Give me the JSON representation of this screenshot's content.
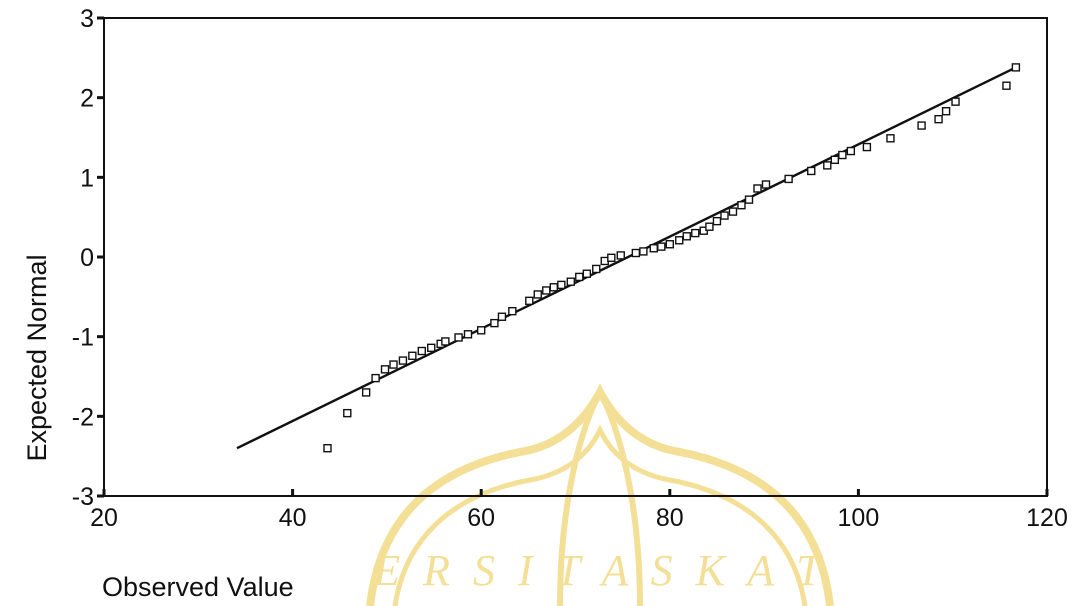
{
  "chart_data": {
    "type": "scatter",
    "title": "",
    "xlabel": "Observed Value",
    "ylabel": "Expected Normal",
    "xlim": [
      20,
      120
    ],
    "ylim": [
      -3,
      3
    ],
    "x_ticks": [
      "20",
      "40",
      "60",
      "80",
      "100",
      "120"
    ],
    "y_ticks": [
      "3",
      "2",
      "1",
      "0",
      "-1",
      "-2",
      "-3"
    ],
    "grid": false,
    "legend": "none",
    "reference_line": {
      "x": [
        34.1,
        116.7
      ],
      "y": [
        -2.4,
        2.38
      ]
    },
    "series": [
      {
        "marker": "open-square",
        "points": [
          [
            43.7,
            -2.4
          ],
          [
            45.8,
            -1.96
          ],
          [
            47.8,
            -1.7
          ],
          [
            48.8,
            -1.52
          ],
          [
            49.8,
            -1.41
          ],
          [
            50.7,
            -1.35
          ],
          [
            51.7,
            -1.3
          ],
          [
            52.7,
            -1.24
          ],
          [
            53.7,
            -1.18
          ],
          [
            54.7,
            -1.14
          ],
          [
            55.7,
            -1.09
          ],
          [
            56.2,
            -1.06
          ],
          [
            57.6,
            -1.01
          ],
          [
            58.6,
            -0.97
          ],
          [
            60.0,
            -0.92
          ],
          [
            61.4,
            -0.83
          ],
          [
            62.2,
            -0.75
          ],
          [
            63.3,
            -0.68
          ],
          [
            65.1,
            -0.55
          ],
          [
            66.0,
            -0.47
          ],
          [
            66.9,
            -0.42
          ],
          [
            67.7,
            -0.38
          ],
          [
            68.5,
            -0.35
          ],
          [
            69.5,
            -0.31
          ],
          [
            70.4,
            -0.25
          ],
          [
            71.2,
            -0.21
          ],
          [
            72.2,
            -0.15
          ],
          [
            73.1,
            -0.05
          ],
          [
            73.8,
            -0.01
          ],
          [
            74.8,
            0.02
          ],
          [
            76.4,
            0.05
          ],
          [
            77.2,
            0.07
          ],
          [
            78.3,
            0.11
          ],
          [
            79.1,
            0.13
          ],
          [
            80.0,
            0.16
          ],
          [
            81.0,
            0.21
          ],
          [
            81.8,
            0.26
          ],
          [
            82.7,
            0.3
          ],
          [
            83.6,
            0.33
          ],
          [
            84.2,
            0.38
          ],
          [
            85.0,
            0.45
          ],
          [
            85.8,
            0.52
          ],
          [
            86.7,
            0.57
          ],
          [
            87.6,
            0.65
          ],
          [
            88.4,
            0.72
          ],
          [
            89.3,
            0.86
          ],
          [
            90.2,
            0.91
          ],
          [
            92.6,
            0.98
          ],
          [
            95.0,
            1.08
          ],
          [
            96.7,
            1.15
          ],
          [
            97.5,
            1.22
          ],
          [
            98.3,
            1.28
          ],
          [
            99.2,
            1.33
          ],
          [
            100.9,
            1.38
          ],
          [
            103.4,
            1.49
          ],
          [
            106.7,
            1.65
          ],
          [
            108.5,
            1.73
          ],
          [
            109.3,
            1.83
          ],
          [
            110.3,
            1.95
          ],
          [
            115.7,
            2.15
          ],
          [
            116.7,
            2.38
          ]
        ]
      }
    ]
  },
  "watermark": {
    "text": "E R S I T A S   K A T",
    "color": "#f2dc8a"
  }
}
